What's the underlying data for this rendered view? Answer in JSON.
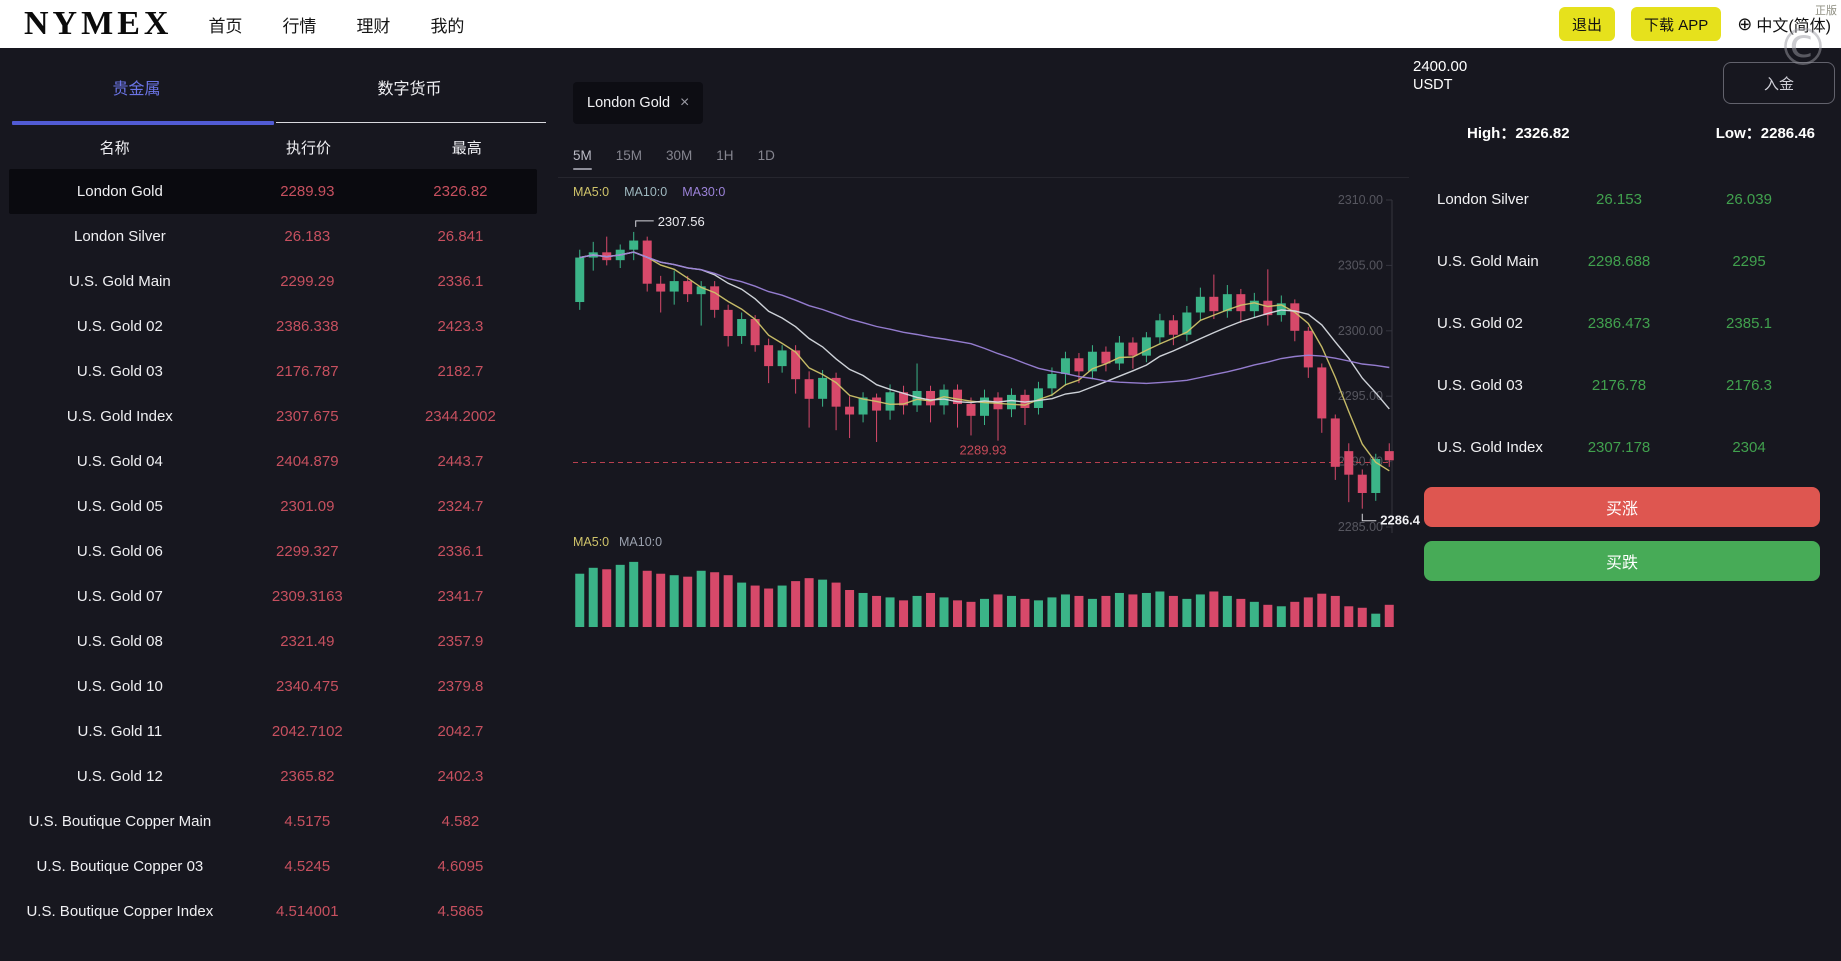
{
  "topbar": {
    "logo": "NYMEX",
    "nav": [
      {
        "name": "home",
        "label": "首页"
      },
      {
        "name": "market",
        "label": "行情"
      },
      {
        "name": "finance",
        "label": "理财"
      },
      {
        "name": "mine",
        "label": "我的"
      }
    ],
    "logout_label": "退出",
    "download_label": "下载 APP",
    "language": "中文(简体)",
    "globe_icon": "⊕",
    "watermark": "正版",
    "copyright_mark": "©"
  },
  "sidebar": {
    "tabs": [
      {
        "name": "precious-metals",
        "label": "贵金属",
        "active": true
      },
      {
        "name": "crypto",
        "label": "数字货币",
        "active": false
      }
    ],
    "columns": [
      "名称",
      "执行价",
      "最高"
    ],
    "rows": [
      {
        "name": "London Gold",
        "price": "2289.93",
        "high": "2326.82",
        "selected": true
      },
      {
        "name": "London Silver",
        "price": "26.183",
        "high": "26.841",
        "selected": false
      },
      {
        "name": "U.S. Gold Main",
        "price": "2299.29",
        "high": "2336.1",
        "selected": false
      },
      {
        "name": "U.S. Gold 02",
        "price": "2386.338",
        "high": "2423.3",
        "selected": false
      },
      {
        "name": "U.S. Gold 03",
        "price": "2176.787",
        "high": "2182.7",
        "selected": false
      },
      {
        "name": "U.S. Gold Index",
        "price": "2307.675",
        "high": "2344.2002",
        "selected": false
      },
      {
        "name": "U.S. Gold 04",
        "price": "2404.879",
        "high": "2443.7",
        "selected": false
      },
      {
        "name": "U.S. Gold 05",
        "price": "2301.09",
        "high": "2324.7",
        "selected": false
      },
      {
        "name": "U.S. Gold 06",
        "price": "2299.327",
        "high": "2336.1",
        "selected": false
      },
      {
        "name": "U.S. Gold 07",
        "price": "2309.3163",
        "high": "2341.7",
        "selected": false
      },
      {
        "name": "U.S. Gold 08",
        "price": "2321.49",
        "high": "2357.9",
        "selected": false
      },
      {
        "name": "U.S. Gold 10",
        "price": "2340.475",
        "high": "2379.8",
        "selected": false
      },
      {
        "name": "U.S. Gold 11",
        "price": "2042.7102",
        "high": "2042.7",
        "selected": false
      },
      {
        "name": "U.S. Gold 12",
        "price": "2365.82",
        "high": "2402.3",
        "selected": false
      },
      {
        "name": "U.S. Boutique Copper Main",
        "price": "4.5175",
        "high": "4.582",
        "selected": false
      },
      {
        "name": "U.S. Boutique Copper 03",
        "price": "4.5245",
        "high": "4.6095",
        "selected": false
      },
      {
        "name": "U.S. Boutique Copper Index",
        "price": "4.514001",
        "high": "4.5865",
        "selected": false
      }
    ]
  },
  "chart": {
    "symbol_tab": {
      "label": "London Gold",
      "close_icon": "×"
    },
    "timeframes": [
      "5M",
      "15M",
      "30M",
      "1H",
      "1D"
    ],
    "active_timeframe": "5M",
    "ma_labels_price": [
      {
        "label": "MA5:0",
        "color": "#cfc36a"
      },
      {
        "label": "MA10:0",
        "color": "#9fb9c0"
      },
      {
        "label": "MA30:0",
        "color": "#9b82d8"
      }
    ],
    "ma_labels_volume": [
      {
        "label": "MA5:0",
        "color": "#cfc36a"
      },
      {
        "label": "MA10:0",
        "color": "#9aa0ad"
      }
    ],
    "colors": {
      "up": "#3bb488",
      "down": "#d7496a",
      "axis_text": "#56565f",
      "axis_line": "#34343e"
    },
    "axis_labels": [
      "2310.00",
      "2305.00",
      "2300.00",
      "2295.00",
      "2290.00",
      "2285.00"
    ],
    "strike_line": {
      "value": 2289.93,
      "label": "2289.93",
      "color": "#b8404f",
      "label_color": "#c64a58"
    },
    "high_marker": {
      "value": 2307.56,
      "label": "2307.56"
    },
    "low_marker": {
      "value": 2286.4,
      "label": "2286.4"
    },
    "chart_data": {
      "type": "candlestick",
      "price_max": 2310,
      "price_min": 2285,
      "candles": [
        [
          2302.2,
          2306.2,
          2301.6,
          2305.6
        ],
        [
          2305.6,
          2306.8,
          2304.6,
          2306.0
        ],
        [
          2306.0,
          2307.2,
          2305.0,
          2305.4
        ],
        [
          2305.4,
          2306.6,
          2304.8,
          2306.2
        ],
        [
          2306.2,
          2307.56,
          2305.4,
          2306.9
        ],
        [
          2306.9,
          2307.2,
          2303.0,
          2303.6
        ],
        [
          2303.6,
          2304.2,
          2301.4,
          2303.0
        ],
        [
          2303.0,
          2304.6,
          2302.0,
          2303.8
        ],
        [
          2303.8,
          2304.2,
          2302.2,
          2302.8
        ],
        [
          2302.8,
          2303.8,
          2300.4,
          2303.4
        ],
        [
          2303.4,
          2303.8,
          2301.0,
          2301.6
        ],
        [
          2301.6,
          2302.0,
          2298.8,
          2299.6
        ],
        [
          2299.6,
          2301.4,
          2299.0,
          2300.9
        ],
        [
          2300.9,
          2301.2,
          2298.4,
          2298.9
        ],
        [
          2298.9,
          2299.4,
          2296.0,
          2297.3
        ],
        [
          2297.3,
          2298.9,
          2296.8,
          2298.5
        ],
        [
          2298.5,
          2298.9,
          2295.2,
          2296.3
        ],
        [
          2296.3,
          2296.9,
          2292.6,
          2294.8
        ],
        [
          2294.8,
          2297.0,
          2294.2,
          2296.4
        ],
        [
          2296.4,
          2296.8,
          2292.4,
          2294.2
        ],
        [
          2294.2,
          2295.0,
          2291.8,
          2293.6
        ],
        [
          2293.6,
          2295.3,
          2293.0,
          2294.9
        ],
        [
          2294.9,
          2295.2,
          2291.5,
          2293.9
        ],
        [
          2293.9,
          2295.9,
          2293.2,
          2295.3
        ],
        [
          2295.3,
          2295.8,
          2293.6,
          2294.3
        ],
        [
          2294.3,
          2297.5,
          2293.8,
          2295.4
        ],
        [
          2295.4,
          2295.8,
          2293.0,
          2294.3
        ],
        [
          2294.3,
          2295.9,
          2293.6,
          2295.5
        ],
        [
          2295.5,
          2295.9,
          2292.6,
          2294.4
        ],
        [
          2294.4,
          2294.9,
          2292.0,
          2293.5
        ],
        [
          2293.5,
          2295.5,
          2292.8,
          2294.9
        ],
        [
          2294.9,
          2295.3,
          2291.6,
          2294.0
        ],
        [
          2294.0,
          2295.6,
          2293.4,
          2295.1
        ],
        [
          2295.1,
          2295.5,
          2292.8,
          2294.1
        ],
        [
          2294.1,
          2296.1,
          2293.6,
          2295.6
        ],
        [
          2295.6,
          2297.2,
          2295.0,
          2296.7
        ],
        [
          2296.7,
          2298.4,
          2295.8,
          2297.9
        ],
        [
          2297.9,
          2298.3,
          2296.0,
          2296.9
        ],
        [
          2296.9,
          2298.9,
          2296.3,
          2298.4
        ],
        [
          2298.4,
          2298.8,
          2296.9,
          2297.5
        ],
        [
          2297.5,
          2299.6,
          2297.0,
          2299.1
        ],
        [
          2299.1,
          2299.5,
          2297.1,
          2298.1
        ],
        [
          2298.1,
          2299.9,
          2297.6,
          2299.5
        ],
        [
          2299.5,
          2301.3,
          2299.0,
          2300.8
        ],
        [
          2300.8,
          2301.2,
          2298.9,
          2299.7
        ],
        [
          2299.7,
          2301.9,
          2299.2,
          2301.4
        ],
        [
          2301.4,
          2303.3,
          2300.8,
          2302.6
        ],
        [
          2302.6,
          2304.3,
          2300.9,
          2301.5
        ],
        [
          2301.5,
          2303.5,
          2301.0,
          2302.8
        ],
        [
          2302.8,
          2303.2,
          2300.6,
          2301.5
        ],
        [
          2301.5,
          2302.9,
          2301.0,
          2302.3
        ],
        [
          2302.3,
          2304.7,
          2300.4,
          2301.2
        ],
        [
          2301.2,
          2302.7,
          2300.7,
          2302.1
        ],
        [
          2302.1,
          2302.4,
          2299.2,
          2300.0
        ],
        [
          2300.0,
          2300.3,
          2296.4,
          2297.2
        ],
        [
          2297.2,
          2297.5,
          2292.2,
          2293.3
        ],
        [
          2293.3,
          2293.6,
          2288.6,
          2289.6
        ],
        [
          2290.8,
          2291.4,
          2286.9,
          2289.0
        ],
        [
          2289.0,
          2289.4,
          2286.4,
          2287.6
        ],
        [
          2287.6,
          2290.6,
          2287.0,
          2290.2
        ],
        [
          2290.8,
          2291.4,
          2289.6,
          2290.1
        ]
      ],
      "volume": [
        0.72,
        0.8,
        0.78,
        0.84,
        0.88,
        0.76,
        0.72,
        0.7,
        0.68,
        0.76,
        0.74,
        0.7,
        0.6,
        0.56,
        0.52,
        0.56,
        0.62,
        0.66,
        0.64,
        0.6,
        0.5,
        0.46,
        0.42,
        0.4,
        0.36,
        0.42,
        0.46,
        0.4,
        0.36,
        0.34,
        0.38,
        0.44,
        0.42,
        0.38,
        0.36,
        0.4,
        0.44,
        0.42,
        0.38,
        0.42,
        0.46,
        0.44,
        0.46,
        0.48,
        0.42,
        0.38,
        0.44,
        0.48,
        0.42,
        0.38,
        0.34,
        0.3,
        0.28,
        0.34,
        0.4,
        0.45,
        0.42,
        0.28,
        0.26,
        0.18,
        0.3
      ],
      "ma_windows": [
        5,
        10,
        30
      ],
      "ma_colors": [
        "#cfc36a",
        "#d7dbe2",
        "#9b82d8"
      ]
    }
  },
  "trade_panel": {
    "balance": "2400.00",
    "currency": "USDT",
    "deposit_label": "入金",
    "high_label": "High：",
    "high_value": "2326.82",
    "low_label": "Low：",
    "low_value": "2286.46",
    "watchlist": [
      {
        "name": "London Silver",
        "v1": "26.153",
        "v2": "26.039"
      },
      {
        "name": "U.S. Gold Main",
        "v1": "2298.688",
        "v2": "2295"
      },
      {
        "name": "U.S. Gold 02",
        "v1": "2386.473",
        "v2": "2385.1"
      },
      {
        "name": "U.S. Gold 03",
        "v1": "2176.78",
        "v2": "2176.3"
      },
      {
        "name": "U.S. Gold Index",
        "v1": "2307.178",
        "v2": "2304"
      }
    ],
    "buy_up_label": "买涨",
    "buy_down_label": "买跌"
  }
}
